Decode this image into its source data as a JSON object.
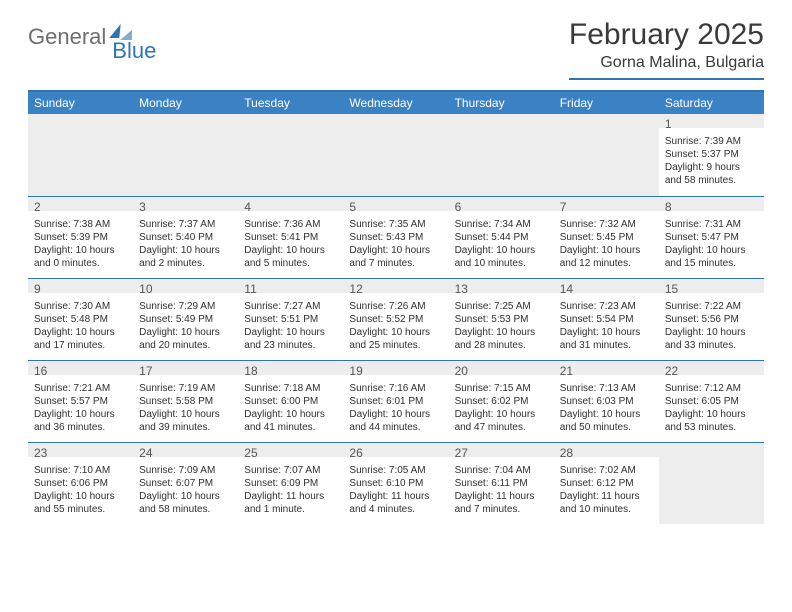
{
  "logo": {
    "text1": "General",
    "text2": "Blue"
  },
  "title": "February 2025",
  "location": "Gorna Malina, Bulgaria",
  "colors": {
    "accent": "#2f75b5",
    "header_bg": "#3b82c4",
    "row_stripe": "#ededed",
    "text": "#303030",
    "logo_gray": "#6e6e6e"
  },
  "day_headers": [
    "Sunday",
    "Monday",
    "Tuesday",
    "Wednesday",
    "Thursday",
    "Friday",
    "Saturday"
  ],
  "weeks": [
    [
      {
        "blank": true
      },
      {
        "blank": true
      },
      {
        "blank": true
      },
      {
        "blank": true
      },
      {
        "blank": true
      },
      {
        "blank": true
      },
      {
        "day": "1",
        "sunrise": "Sunrise: 7:39 AM",
        "sunset": "Sunset: 5:37 PM",
        "daylight1": "Daylight: 9 hours",
        "daylight2": "and 58 minutes."
      }
    ],
    [
      {
        "day": "2",
        "sunrise": "Sunrise: 7:38 AM",
        "sunset": "Sunset: 5:39 PM",
        "daylight1": "Daylight: 10 hours",
        "daylight2": "and 0 minutes."
      },
      {
        "day": "3",
        "sunrise": "Sunrise: 7:37 AM",
        "sunset": "Sunset: 5:40 PM",
        "daylight1": "Daylight: 10 hours",
        "daylight2": "and 2 minutes."
      },
      {
        "day": "4",
        "sunrise": "Sunrise: 7:36 AM",
        "sunset": "Sunset: 5:41 PM",
        "daylight1": "Daylight: 10 hours",
        "daylight2": "and 5 minutes."
      },
      {
        "day": "5",
        "sunrise": "Sunrise: 7:35 AM",
        "sunset": "Sunset: 5:43 PM",
        "daylight1": "Daylight: 10 hours",
        "daylight2": "and 7 minutes."
      },
      {
        "day": "6",
        "sunrise": "Sunrise: 7:34 AM",
        "sunset": "Sunset: 5:44 PM",
        "daylight1": "Daylight: 10 hours",
        "daylight2": "and 10 minutes."
      },
      {
        "day": "7",
        "sunrise": "Sunrise: 7:32 AM",
        "sunset": "Sunset: 5:45 PM",
        "daylight1": "Daylight: 10 hours",
        "daylight2": "and 12 minutes."
      },
      {
        "day": "8",
        "sunrise": "Sunrise: 7:31 AM",
        "sunset": "Sunset: 5:47 PM",
        "daylight1": "Daylight: 10 hours",
        "daylight2": "and 15 minutes."
      }
    ],
    [
      {
        "day": "9",
        "sunrise": "Sunrise: 7:30 AM",
        "sunset": "Sunset: 5:48 PM",
        "daylight1": "Daylight: 10 hours",
        "daylight2": "and 17 minutes."
      },
      {
        "day": "10",
        "sunrise": "Sunrise: 7:29 AM",
        "sunset": "Sunset: 5:49 PM",
        "daylight1": "Daylight: 10 hours",
        "daylight2": "and 20 minutes."
      },
      {
        "day": "11",
        "sunrise": "Sunrise: 7:27 AM",
        "sunset": "Sunset: 5:51 PM",
        "daylight1": "Daylight: 10 hours",
        "daylight2": "and 23 minutes."
      },
      {
        "day": "12",
        "sunrise": "Sunrise: 7:26 AM",
        "sunset": "Sunset: 5:52 PM",
        "daylight1": "Daylight: 10 hours",
        "daylight2": "and 25 minutes."
      },
      {
        "day": "13",
        "sunrise": "Sunrise: 7:25 AM",
        "sunset": "Sunset: 5:53 PM",
        "daylight1": "Daylight: 10 hours",
        "daylight2": "and 28 minutes."
      },
      {
        "day": "14",
        "sunrise": "Sunrise: 7:23 AM",
        "sunset": "Sunset: 5:54 PM",
        "daylight1": "Daylight: 10 hours",
        "daylight2": "and 31 minutes."
      },
      {
        "day": "15",
        "sunrise": "Sunrise: 7:22 AM",
        "sunset": "Sunset: 5:56 PM",
        "daylight1": "Daylight: 10 hours",
        "daylight2": "and 33 minutes."
      }
    ],
    [
      {
        "day": "16",
        "sunrise": "Sunrise: 7:21 AM",
        "sunset": "Sunset: 5:57 PM",
        "daylight1": "Daylight: 10 hours",
        "daylight2": "and 36 minutes."
      },
      {
        "day": "17",
        "sunrise": "Sunrise: 7:19 AM",
        "sunset": "Sunset: 5:58 PM",
        "daylight1": "Daylight: 10 hours",
        "daylight2": "and 39 minutes."
      },
      {
        "day": "18",
        "sunrise": "Sunrise: 7:18 AM",
        "sunset": "Sunset: 6:00 PM",
        "daylight1": "Daylight: 10 hours",
        "daylight2": "and 41 minutes."
      },
      {
        "day": "19",
        "sunrise": "Sunrise: 7:16 AM",
        "sunset": "Sunset: 6:01 PM",
        "daylight1": "Daylight: 10 hours",
        "daylight2": "and 44 minutes."
      },
      {
        "day": "20",
        "sunrise": "Sunrise: 7:15 AM",
        "sunset": "Sunset: 6:02 PM",
        "daylight1": "Daylight: 10 hours",
        "daylight2": "and 47 minutes."
      },
      {
        "day": "21",
        "sunrise": "Sunrise: 7:13 AM",
        "sunset": "Sunset: 6:03 PM",
        "daylight1": "Daylight: 10 hours",
        "daylight2": "and 50 minutes."
      },
      {
        "day": "22",
        "sunrise": "Sunrise: 7:12 AM",
        "sunset": "Sunset: 6:05 PM",
        "daylight1": "Daylight: 10 hours",
        "daylight2": "and 53 minutes."
      }
    ],
    [
      {
        "day": "23",
        "sunrise": "Sunrise: 7:10 AM",
        "sunset": "Sunset: 6:06 PM",
        "daylight1": "Daylight: 10 hours",
        "daylight2": "and 55 minutes."
      },
      {
        "day": "24",
        "sunrise": "Sunrise: 7:09 AM",
        "sunset": "Sunset: 6:07 PM",
        "daylight1": "Daylight: 10 hours",
        "daylight2": "and 58 minutes."
      },
      {
        "day": "25",
        "sunrise": "Sunrise: 7:07 AM",
        "sunset": "Sunset: 6:09 PM",
        "daylight1": "Daylight: 11 hours",
        "daylight2": "and 1 minute."
      },
      {
        "day": "26",
        "sunrise": "Sunrise: 7:05 AM",
        "sunset": "Sunset: 6:10 PM",
        "daylight1": "Daylight: 11 hours",
        "daylight2": "and 4 minutes."
      },
      {
        "day": "27",
        "sunrise": "Sunrise: 7:04 AM",
        "sunset": "Sunset: 6:11 PM",
        "daylight1": "Daylight: 11 hours",
        "daylight2": "and 7 minutes."
      },
      {
        "day": "28",
        "sunrise": "Sunrise: 7:02 AM",
        "sunset": "Sunset: 6:12 PM",
        "daylight1": "Daylight: 11 hours",
        "daylight2": "and 10 minutes."
      },
      {
        "blank": true
      }
    ]
  ]
}
